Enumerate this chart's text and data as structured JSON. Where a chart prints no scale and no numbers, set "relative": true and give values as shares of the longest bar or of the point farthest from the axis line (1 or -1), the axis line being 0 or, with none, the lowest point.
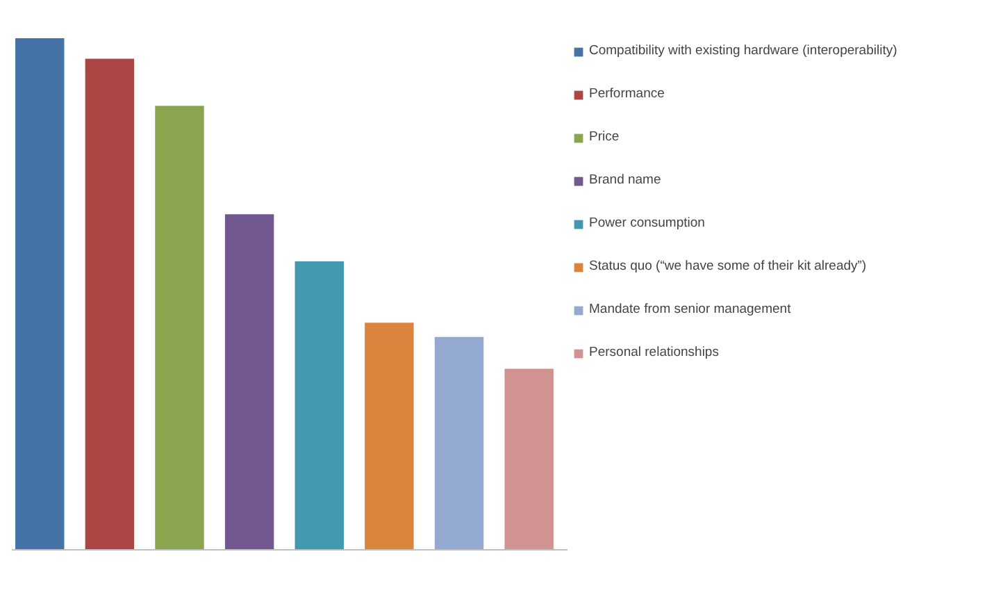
{
  "chart_data": {
    "type": "bar",
    "relative": true,
    "categories": [
      null,
      null,
      null,
      null,
      null,
      null,
      null,
      null
    ],
    "legend": "right",
    "stacked": true,
    "grid": false,
    "series": [
      {
        "name": "Compatibility with existing hardware (interoperability)",
        "color": "#4572a7",
        "values": [
          1,
          null,
          null,
          null,
          null,
          null,
          null,
          null
        ]
      },
      {
        "name": "Performance",
        "color": "#aa4643",
        "values": [
          null,
          0.96,
          null,
          null,
          null,
          null,
          null,
          null
        ]
      },
      {
        "name": "Price",
        "color": "#89a54e",
        "values": [
          null,
          null,
          0.868,
          null,
          null,
          null,
          null,
          null
        ]
      },
      {
        "name": "Brand name",
        "color": "#71588f",
        "values": [
          null,
          null,
          null,
          0.656,
          null,
          null,
          null,
          null
        ]
      },
      {
        "name": "Power consumption",
        "color": "#4198af",
        "values": [
          null,
          null,
          null,
          null,
          0.564,
          null,
          null,
          null
        ]
      },
      {
        "name": "Status quo (“we have some of their kit already”)",
        "color": "#db843d",
        "values": [
          null,
          null,
          null,
          null,
          null,
          0.444,
          null,
          null
        ]
      },
      {
        "name": "Mandate from senior management",
        "color": "#93a9cf",
        "values": [
          null,
          null,
          null,
          null,
          null,
          null,
          0.416,
          null
        ]
      },
      {
        "name": "Personal relationships",
        "color": "#d19392",
        "values": [
          null,
          null,
          null,
          null,
          null,
          null,
          null,
          0.354
        ]
      }
    ]
  }
}
